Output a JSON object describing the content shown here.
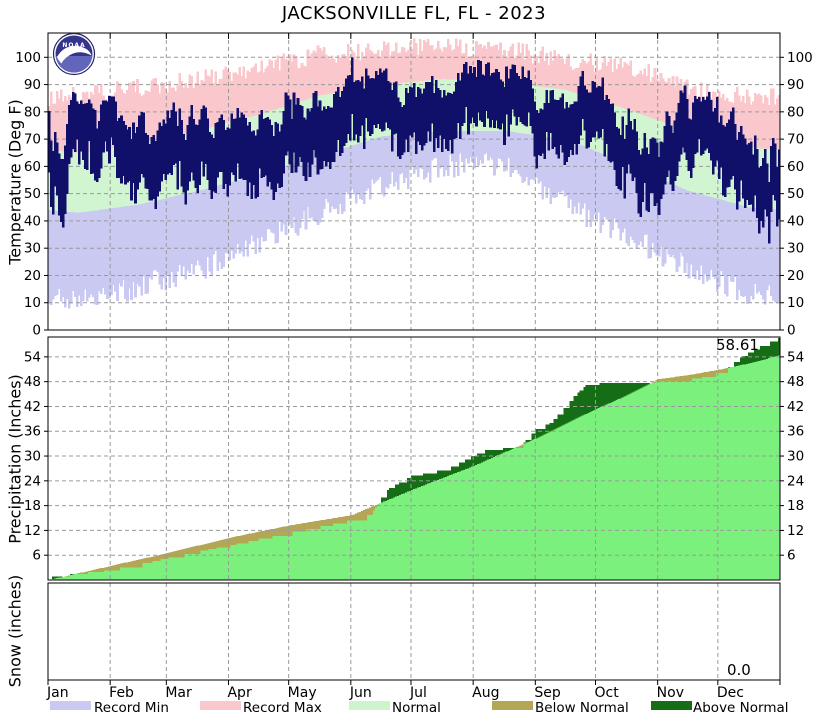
{
  "title": "JACKSONVILLE FL, FL - 2023",
  "logo": {
    "name": "noaa-logo",
    "text": "NOAA"
  },
  "axes": {
    "temperature_label": "Temperature (Deg F)",
    "precipitation_label": "Precipitation (Inches)",
    "snow_label": "Snow (inches)"
  },
  "months": [
    "Jan",
    "Feb",
    "Mar",
    "Apr",
    "May",
    "Jun",
    "Jul",
    "Aug",
    "Sep",
    "Oct",
    "Nov",
    "Dec"
  ],
  "month_start_day": [
    0,
    31,
    59,
    90,
    120,
    151,
    181,
    212,
    243,
    273,
    304,
    334,
    365
  ],
  "legend": [
    {
      "label": "Record Min",
      "color": "#c9c9f1"
    },
    {
      "label": "Record Max",
      "color": "#f9c7cc"
    },
    {
      "label": "Normal",
      "color": "#cdf4cd"
    },
    {
      "label": "Below Normal",
      "color": "#b3a755"
    },
    {
      "label": "Above Normal",
      "color": "#156e15"
    }
  ],
  "grid_color": "#9a9a9a",
  "chart_data": [
    {
      "type": "bar",
      "name": "temperature",
      "description": "Daily actual temperature range (dark bars) over daily record-min, normal and record-max bands",
      "ylabel": "Temperature (Deg F)",
      "ylim": [
        0,
        109
      ],
      "yticks": [
        0,
        10,
        20,
        30,
        40,
        50,
        60,
        70,
        80,
        90,
        100
      ],
      "legend_entries": [
        "Record Min",
        "Record Max",
        "Normal"
      ],
      "monthly_anchors": {
        "record_high": [
          85,
          88,
          91,
          95,
          100,
          102,
          103,
          102,
          98,
          96,
          88,
          84
        ],
        "normal_high": [
          65,
          68,
          73,
          79,
          86,
          90,
          92,
          91,
          88,
          81,
          73,
          67
        ],
        "normal_low": [
          43,
          46,
          51,
          57,
          64,
          71,
          73,
          73,
          70,
          61,
          51,
          45
        ],
        "record_low": [
          12,
          18,
          24,
          34,
          45,
          55,
          62,
          63,
          48,
          36,
          25,
          15
        ],
        "actual_anomaly_bias": [
          7,
          5,
          2,
          1,
          2,
          1,
          2,
          2,
          1,
          0,
          -1,
          0
        ]
      },
      "colors": {
        "record_min": "#c9c9f1",
        "record_max": "#f9c7cc",
        "normal": "#d0f5d0",
        "actual": "#10106a"
      }
    },
    {
      "type": "area",
      "name": "precipitation",
      "description": "Cumulative precipitation (green) vs cumulative normal; olive = below normal, dark green = above normal",
      "ylabel": "Precipitation (Inches)",
      "ylim": [
        0,
        58.8
      ],
      "yticks": [
        6,
        12,
        18,
        24,
        30,
        36,
        42,
        48,
        54
      ],
      "total": 58.61,
      "total_label": "58.61",
      "cumulative_actual_anchors": [
        [
          0,
          0
        ],
        [
          2,
          0.8
        ],
        [
          8,
          1.3
        ],
        [
          15,
          1.7
        ],
        [
          31,
          2.5
        ],
        [
          45,
          3.9
        ],
        [
          59,
          5.4
        ],
        [
          75,
          7.0
        ],
        [
          90,
          8.4
        ],
        [
          105,
          10.0
        ],
        [
          120,
          11.5
        ],
        [
          135,
          13.0
        ],
        [
          151,
          14.6
        ],
        [
          158,
          15.3
        ],
        [
          162,
          16.8
        ],
        [
          166,
          20.0
        ],
        [
          170,
          22.3
        ],
        [
          175,
          23.6
        ],
        [
          181,
          25.3
        ],
        [
          190,
          26.0
        ],
        [
          200,
          27.2
        ],
        [
          212,
          30.2
        ],
        [
          218,
          31.5
        ],
        [
          227,
          32.0
        ],
        [
          235,
          32.2
        ],
        [
          243,
          36.6
        ],
        [
          250,
          38.0
        ],
        [
          256,
          41.0
        ],
        [
          262,
          44.5
        ],
        [
          268,
          47.2
        ],
        [
          273,
          47.6
        ],
        [
          285,
          47.8
        ],
        [
          300,
          48.0
        ],
        [
          315,
          48.4
        ],
        [
          325,
          49.0
        ],
        [
          334,
          50.2
        ],
        [
          337,
          50.8
        ],
        [
          340,
          52.0
        ],
        [
          344,
          53.6
        ],
        [
          349,
          55.0
        ],
        [
          355,
          56.6
        ],
        [
          360,
          57.7
        ],
        [
          364,
          58.61
        ]
      ],
      "cumulative_normal_anchors": [
        [
          0,
          0
        ],
        [
          31,
          3.4
        ],
        [
          59,
          6.5
        ],
        [
          90,
          10.2
        ],
        [
          120,
          13.2
        ],
        [
          151,
          15.7
        ],
        [
          181,
          21.8
        ],
        [
          212,
          27.6
        ],
        [
          243,
          34.3
        ],
        [
          258,
          37.9
        ],
        [
          273,
          41.4
        ],
        [
          288,
          44.6
        ],
        [
          304,
          48.6
        ],
        [
          319,
          49.6
        ],
        [
          334,
          50.9
        ],
        [
          349,
          52.4
        ],
        [
          364,
          54.3
        ]
      ],
      "colors": {
        "actual": "#7cf07c",
        "below_normal": "#b3a755",
        "above_normal": "#156e15"
      }
    },
    {
      "type": "area",
      "name": "snow",
      "ylabel": "Snow (inches)",
      "total": 0.0,
      "total_label": "0.0",
      "values": []
    }
  ]
}
